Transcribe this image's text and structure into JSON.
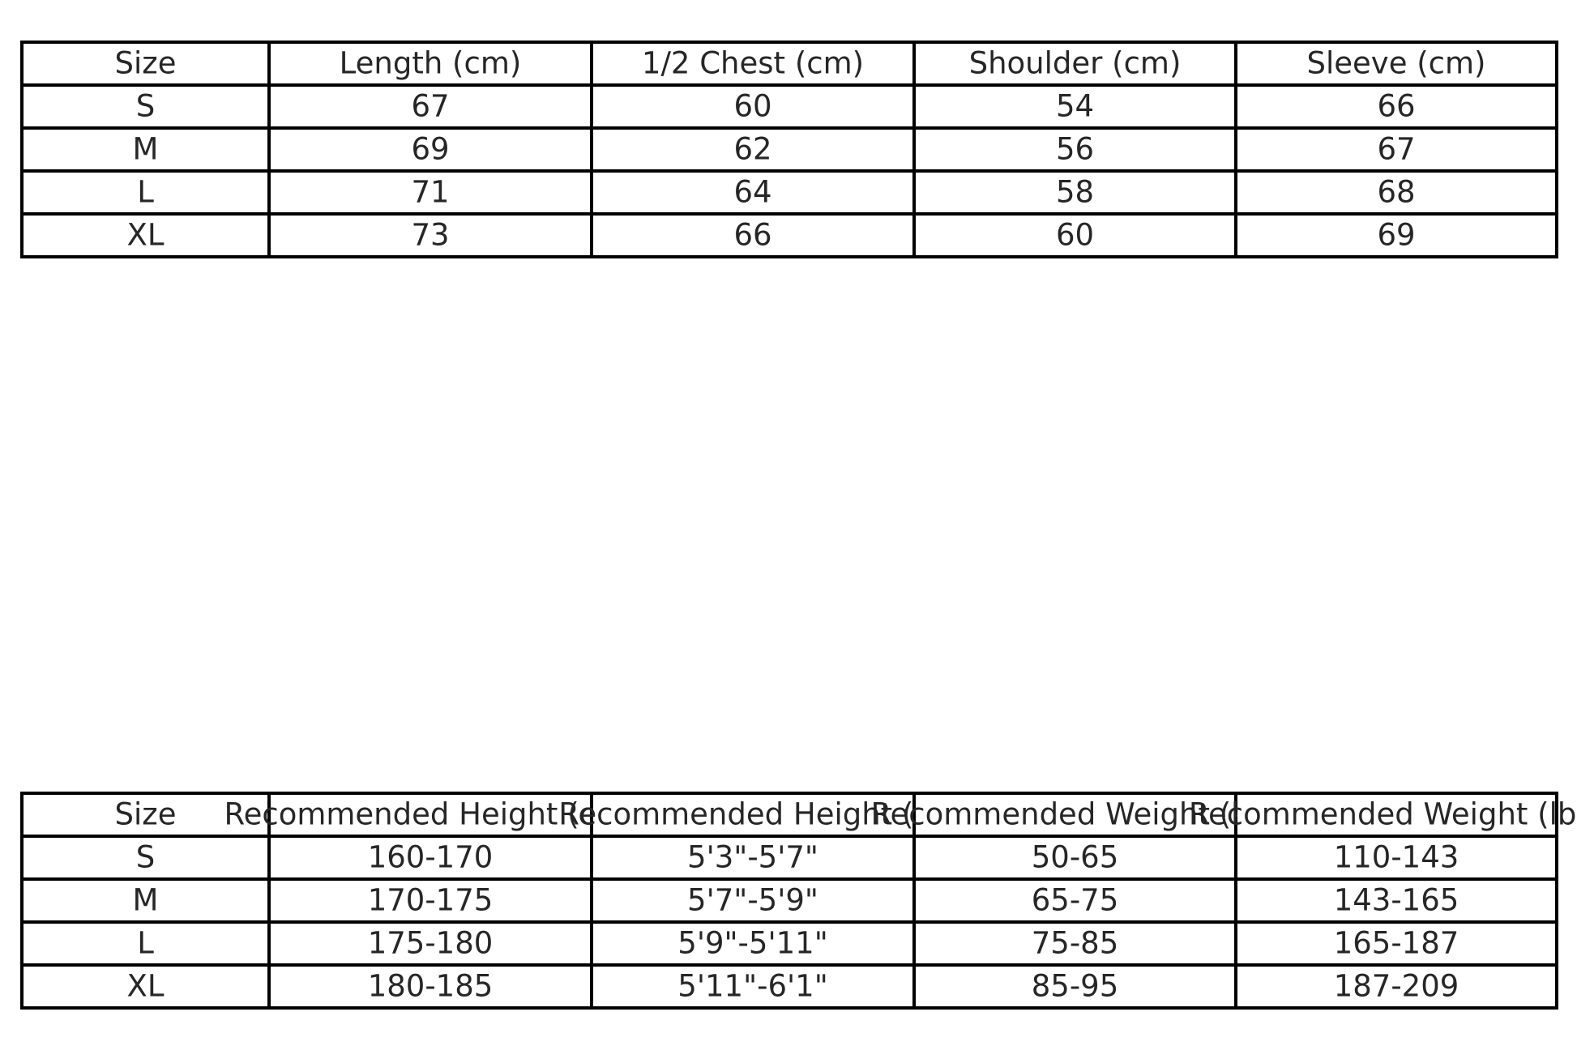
{
  "colors": {
    "background": "#ffffff",
    "border": "#000000",
    "text": "#262626"
  },
  "chart_data": [
    {
      "type": "table",
      "title": "",
      "columns": [
        "Size",
        "Length (cm)",
        "1/2 Chest (cm)",
        "Shoulder (cm)",
        "Sleeve (cm)"
      ],
      "rows": [
        [
          "S",
          "67",
          "60",
          "54",
          "66"
        ],
        [
          "M",
          "69",
          "62",
          "56",
          "67"
        ],
        [
          "L",
          "71",
          "64",
          "58",
          "68"
        ],
        [
          "XL",
          "73",
          "66",
          "60",
          "69"
        ]
      ],
      "layout": "grid with black borders, all cells white, text centered, header text overflows into neighbour cells"
    },
    {
      "type": "table",
      "title": "",
      "columns": [
        "Size",
        "Recommended Height (cm)",
        "Recommended Height (ft)",
        "Recommended Weight (kg)",
        "Recommended Weight (lbs)"
      ],
      "rows": [
        [
          "S",
          "160-170",
          "5'3\"-5'7\"",
          "50-65",
          "110-143"
        ],
        [
          "M",
          "170-175",
          "5'7\"-5'9\"",
          "65-75",
          "143-165"
        ],
        [
          "L",
          "175-180",
          "5'9\"-5'11\"",
          "75-85",
          "165-187"
        ],
        [
          "XL",
          "180-185",
          "5'11\"-6'1\"",
          "85-95",
          "187-209"
        ]
      ],
      "layout": "grid with black borders, all cells white, text centered, wide header labels overlap adjacent columns and are clipped at image right edge"
    }
  ]
}
